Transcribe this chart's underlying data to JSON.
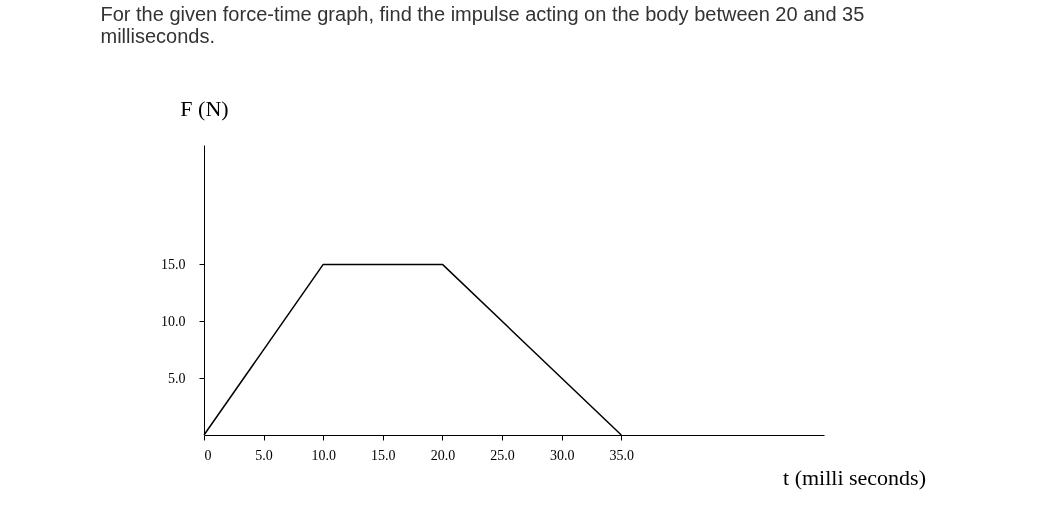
{
  "chart_data": {
    "type": "line",
    "title": "For the given force-time graph, find the impulse acting on the body between 20 and 35 milliseconds.",
    "xlabel": "t (milli seconds)",
    "ylabel": "F (N)",
    "x": [
      0,
      10,
      20,
      35
    ],
    "values": [
      0,
      15,
      15,
      0
    ],
    "color": "#000000",
    "xlim": [
      0,
      52
    ],
    "ylim": [
      0,
      25.5
    ],
    "xticks": [
      {
        "value": 0,
        "label": "0"
      },
      {
        "value": 5,
        "label": "5.0"
      },
      {
        "value": 10,
        "label": "10.0"
      },
      {
        "value": 15,
        "label": "15.0"
      },
      {
        "value": 20,
        "label": "20.0"
      },
      {
        "value": 25,
        "label": "25.0"
      },
      {
        "value": 30,
        "label": "30.0"
      },
      {
        "value": 35,
        "label": "35.0"
      }
    ],
    "yticks": [
      {
        "value": 5,
        "label": "5.0"
      },
      {
        "value": 10,
        "label": "10.0"
      },
      {
        "value": 15,
        "label": "15.0"
      }
    ],
    "grid": false
  }
}
